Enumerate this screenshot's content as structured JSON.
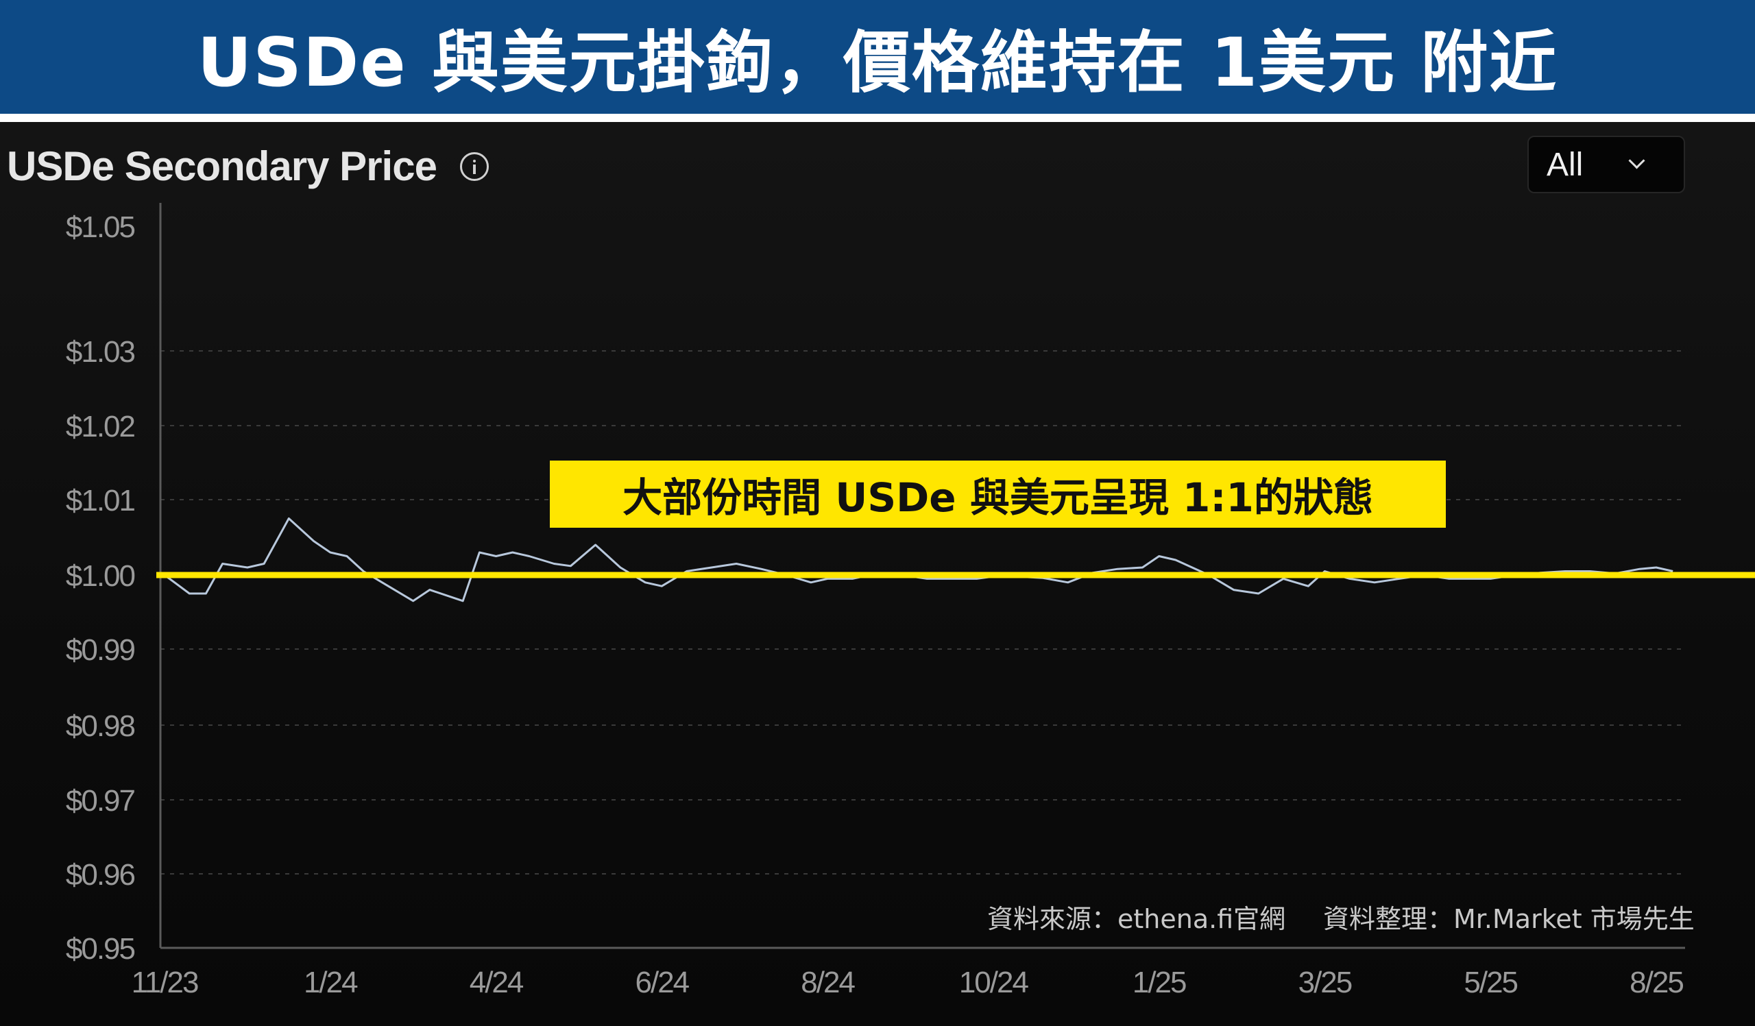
{
  "banner": {
    "title": "USDe 與美元掛鉤，價格維持在 1美元 附近"
  },
  "chart_header": {
    "title": "USDe Secondary Price",
    "range_select": "All"
  },
  "callout": {
    "text": "大部份時間 USDe 與美元呈現 1:1的狀態"
  },
  "footnotes": {
    "source": "資料來源：ethena.fi官網",
    "compiled_by": "資料整理：Mr.Market 市場先生"
  },
  "colors": {
    "banner": "#0d4a86",
    "line": "#b8c8dc",
    "reference_line": "#ffe600",
    "background": "#0c0c0c"
  },
  "chart_data": {
    "type": "line",
    "title": "USDe Secondary Price",
    "ylim": [
      0.95,
      1.05
    ],
    "y_ticks": [
      {
        "value": 1.05,
        "label": "$1.05"
      },
      {
        "value": 1.03,
        "label": "$1.03"
      },
      {
        "value": 1.02,
        "label": "$1.02"
      },
      {
        "value": 1.01,
        "label": "$1.01"
      },
      {
        "value": 1.0,
        "label": "$1.00"
      },
      {
        "value": 0.99,
        "label": "$0.99"
      },
      {
        "value": 0.98,
        "label": "$0.98"
      },
      {
        "value": 0.97,
        "label": "$0.97"
      },
      {
        "value": 0.96,
        "label": "$0.96"
      },
      {
        "value": 0.95,
        "label": "$0.95"
      }
    ],
    "x_ticks": [
      "11/23",
      "1/24",
      "4/24",
      "6/24",
      "8/24",
      "10/24",
      "1/25",
      "3/25",
      "5/25",
      "8/25"
    ],
    "grid": "horizontal dashed",
    "reference_line": {
      "value": 1.0
    },
    "series": [
      {
        "x": [
          0,
          0.15,
          0.25,
          0.35,
          0.5,
          0.6,
          0.75,
          0.9,
          1.0,
          1.1,
          1.2,
          1.35,
          1.5,
          1.6,
          1.8,
          1.9,
          2.0,
          2.1,
          2.2,
          2.35,
          2.45,
          2.6,
          2.75,
          2.9,
          3.0,
          3.15,
          3.3,
          3.45,
          3.6,
          3.75,
          3.9,
          4.0,
          4.15,
          4.3,
          4.45,
          4.6,
          4.75,
          4.9,
          5.0,
          5.15,
          5.3,
          5.45,
          5.6,
          5.75,
          5.9,
          6.0,
          6.1,
          6.2,
          6.3,
          6.45,
          6.6,
          6.75,
          6.9,
          7.0,
          7.15,
          7.3,
          7.45,
          7.6,
          7.75,
          7.9,
          8.0,
          8.15,
          8.3,
          8.45,
          8.6,
          8.75,
          8.9,
          9.0,
          9.1
        ],
        "y": [
          1.0,
          0.9975,
          0.9975,
          1.0015,
          1.001,
          1.0015,
          1.0075,
          1.0045,
          1.003,
          1.0025,
          1.0005,
          0.9985,
          0.9965,
          0.998,
          0.9965,
          1.003,
          1.0025,
          1.003,
          1.0025,
          1.0015,
          1.0012,
          1.004,
          1.001,
          0.999,
          0.9985,
          1.0005,
          1.001,
          1.0015,
          1.0008,
          1.0,
          0.999,
          0.9995,
          0.9995,
          1.0002,
          1.0,
          0.9995,
          0.9995,
          0.9995,
          0.9998,
          0.9998,
          0.9996,
          0.999,
          1.0003,
          1.0008,
          1.001,
          1.0025,
          1.002,
          1.001,
          1.0,
          0.998,
          0.9975,
          0.9995,
          0.9985,
          1.0005,
          0.9995,
          0.999,
          0.9995,
          1.0,
          0.9995,
          0.9995,
          0.9995,
          1.0,
          1.0003,
          1.0005,
          1.0005,
          1.0002,
          1.0008,
          1.001,
          1.0005
        ]
      }
    ]
  }
}
